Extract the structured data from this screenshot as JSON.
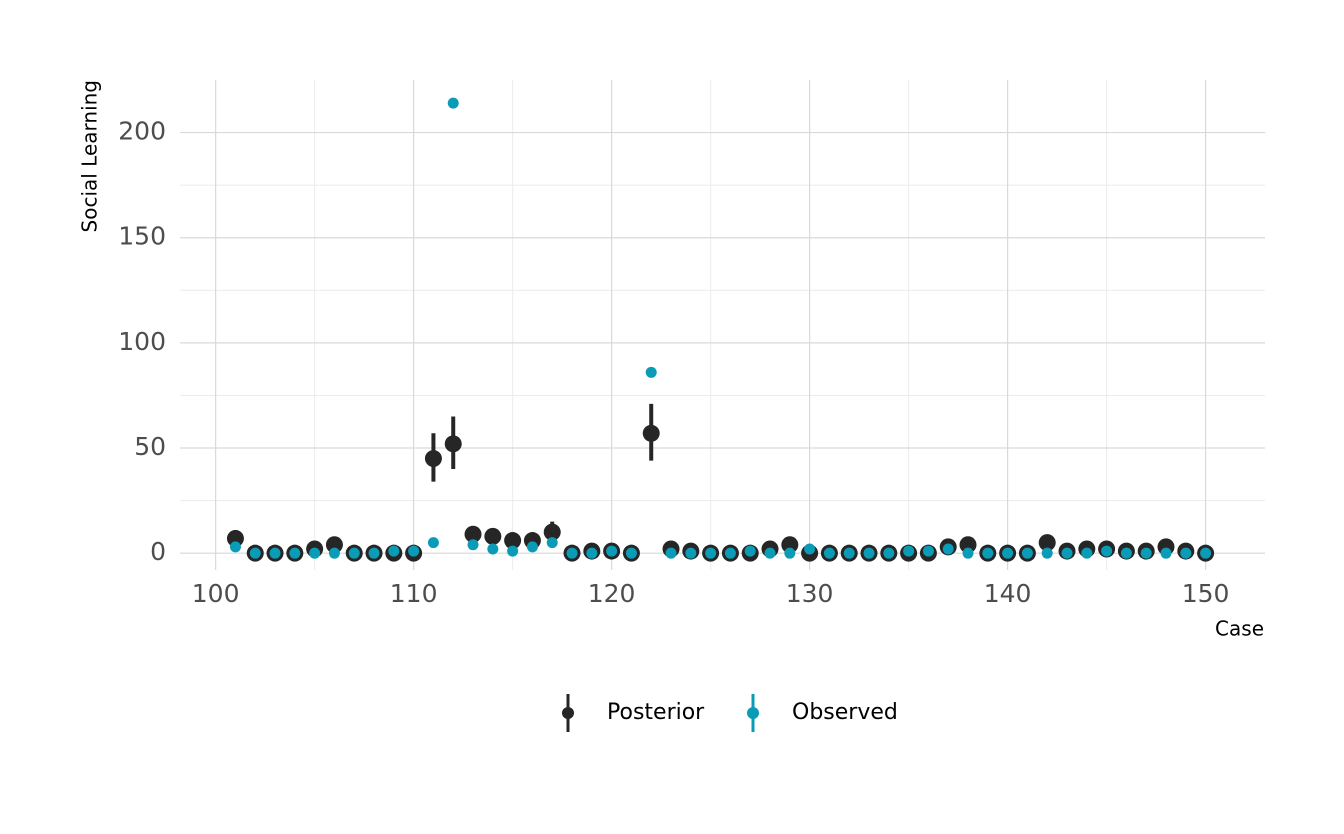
{
  "chart_data": {
    "type": "pointrange",
    "x_label": "Case",
    "y_label": "Social Learning",
    "x": [
      101,
      102,
      103,
      104,
      105,
      106,
      107,
      108,
      109,
      110,
      111,
      112,
      113,
      114,
      115,
      116,
      117,
      118,
      119,
      120,
      121,
      122,
      123,
      124,
      125,
      126,
      127,
      128,
      129,
      130,
      131,
      132,
      133,
      134,
      135,
      136,
      137,
      138,
      139,
      140,
      141,
      142,
      143,
      144,
      145,
      146,
      147,
      148,
      149,
      150
    ],
    "series": [
      {
        "name": "Posterior",
        "color": "#262626",
        "values": [
          7,
          0,
          0,
          0,
          2,
          4,
          0,
          0,
          0,
          0,
          45,
          52,
          9,
          8,
          6,
          6,
          10,
          0,
          1,
          1,
          0,
          57,
          2,
          1,
          0,
          0,
          0,
          2,
          4,
          0,
          0,
          0,
          0,
          0,
          0,
          0,
          3,
          4,
          0,
          0,
          0,
          5,
          1,
          2,
          2,
          1,
          1,
          3,
          1,
          0
        ],
        "lower": [
          4,
          0,
          0,
          0,
          1,
          2,
          0,
          0,
          0,
          0,
          34,
          40,
          6,
          5,
          3,
          4,
          6,
          0,
          0,
          0,
          0,
          44,
          1,
          0,
          0,
          0,
          0,
          1,
          2,
          0,
          0,
          0,
          0,
          0,
          0,
          0,
          2,
          2,
          0,
          0,
          0,
          3,
          0,
          1,
          1,
          0,
          0,
          2,
          0,
          0
        ],
        "upper": [
          11,
          1,
          1,
          1,
          4,
          6,
          1,
          1,
          1,
          1,
          57,
          65,
          12,
          11,
          9,
          8,
          15,
          1,
          2,
          2,
          1,
          71,
          4,
          2,
          1,
          1,
          1,
          4,
          6,
          1,
          1,
          1,
          1,
          1,
          1,
          1,
          5,
          6,
          1,
          1,
          1,
          8,
          2,
          4,
          4,
          2,
          2,
          5,
          2,
          1
        ]
      },
      {
        "name": "Observed",
        "color": "#0a9bb6",
        "values": [
          3,
          0,
          0,
          0,
          0,
          0,
          0,
          0,
          1,
          1,
          5,
          214,
          4,
          2,
          1,
          3,
          5,
          0,
          0,
          1,
          0,
          86,
          0,
          0,
          0,
          0,
          1,
          0,
          0,
          2,
          0,
          0,
          0,
          0,
          1,
          1,
          2,
          0,
          0,
          0,
          0,
          0,
          0,
          0,
          1,
          0,
          0,
          0,
          0,
          0
        ]
      }
    ],
    "xlim": [
      98.2,
      153
    ],
    "xticks": [
      100,
      110,
      120,
      130,
      140,
      150
    ],
    "xminor": [
      105,
      115,
      125,
      135,
      145
    ],
    "ylim": [
      -8,
      225
    ],
    "yticks": [
      0,
      50,
      100,
      150,
      200
    ],
    "yminor": [
      25,
      75,
      125,
      175
    ],
    "grid": true,
    "legend": "bottom"
  }
}
